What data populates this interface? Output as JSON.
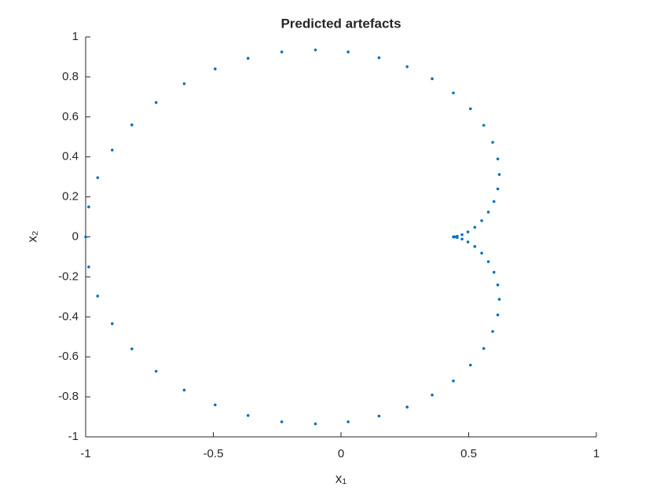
{
  "chart_data": {
    "type": "scatter",
    "title": "Predicted artefacts",
    "xlabel": "x₁",
    "ylabel": "x₂",
    "color": "#0072bd",
    "xlim": [
      -1,
      1
    ],
    "ylim": [
      -1,
      1
    ],
    "xticks": [
      -1,
      -0.5,
      0,
      0.5,
      1
    ],
    "yticks": [
      -1,
      -0.8,
      -0.6,
      -0.4,
      -0.2,
      0,
      0.2,
      0.4,
      0.6,
      0.8,
      1
    ],
    "x": [
      0.44,
      0.444,
      0.455,
      0.474,
      0.497,
      0.524,
      0.551,
      0.577,
      0.599,
      0.614,
      0.62,
      0.614,
      0.594,
      0.559,
      0.507,
      0.44,
      0.357,
      0.259,
      0.149,
      0.028,
      -0.1,
      -0.232,
      -0.364,
      -0.493,
      -0.614,
      -0.724,
      -0.819,
      -0.896,
      -0.953,
      -0.988,
      -1.0,
      -0.988,
      -0.953,
      -0.896,
      -0.819,
      -0.724,
      -0.614,
      -0.493,
      -0.364,
      -0.232,
      -0.1,
      0.028,
      0.149,
      0.259,
      0.357,
      0.44,
      0.507,
      0.559,
      0.594,
      0.614,
      0.62,
      0.614,
      0.599,
      0.577,
      0.551,
      0.524,
      0.497,
      0.474,
      0.455,
      0.444
    ],
    "y": [
      0,
      0.0004,
      0.003,
      0.011,
      0.025,
      0.048,
      0.081,
      0.124,
      0.177,
      0.24,
      0.312,
      0.39,
      0.473,
      0.558,
      0.641,
      0.72,
      0.791,
      0.851,
      0.896,
      0.925,
      0.935,
      0.925,
      0.893,
      0.84,
      0.766,
      0.672,
      0.56,
      0.434,
      0.296,
      0.15,
      0,
      -0.15,
      -0.296,
      -0.434,
      -0.56,
      -0.672,
      -0.766,
      -0.84,
      -0.893,
      -0.925,
      -0.935,
      -0.925,
      -0.896,
      -0.851,
      -0.791,
      -0.72,
      -0.641,
      -0.558,
      -0.473,
      -0.39,
      -0.312,
      -0.24,
      -0.177,
      -0.124,
      -0.081,
      -0.048,
      -0.025,
      -0.011,
      -0.003,
      -0.0004
    ]
  }
}
